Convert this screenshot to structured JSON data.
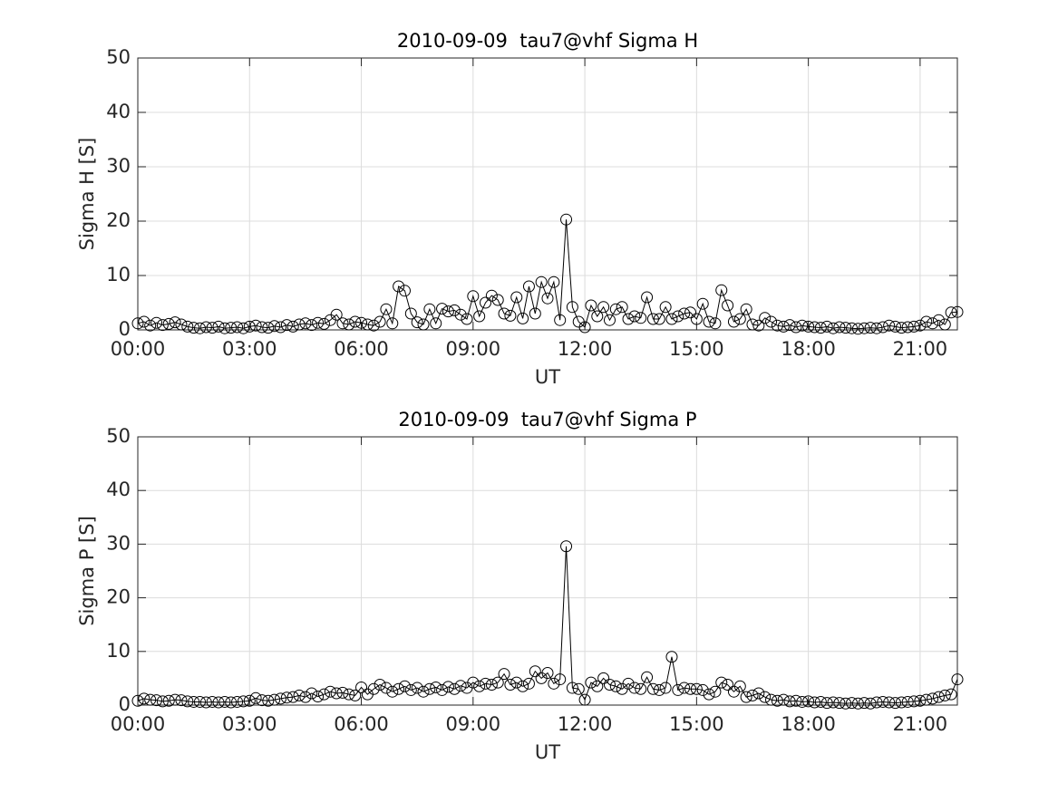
{
  "chart_data": [
    {
      "type": "line",
      "title": "2010-09-09  tau7@vhf Sigma H",
      "xlabel": "UT",
      "ylabel": "Sigma H [S]",
      "color": "#000000",
      "marker": "circle",
      "grid": true,
      "x": [
        0,
        10,
        20,
        30,
        40,
        50,
        60,
        70,
        80,
        90,
        100,
        110,
        120,
        130,
        140,
        150,
        160,
        170,
        180,
        190,
        200,
        210,
        220,
        230,
        240,
        250,
        260,
        270,
        280,
        290,
        300,
        310,
        320,
        330,
        340,
        350,
        360,
        370,
        380,
        390,
        400,
        410,
        420,
        430,
        440,
        450,
        460,
        470,
        480,
        490,
        500,
        510,
        520,
        530,
        540,
        550,
        560,
        570,
        580,
        590,
        600,
        610,
        620,
        630,
        640,
        650,
        660,
        670,
        680,
        690,
        700,
        710,
        720,
        730,
        740,
        750,
        760,
        770,
        780,
        790,
        800,
        810,
        820,
        830,
        840,
        850,
        860,
        870,
        880,
        890,
        900,
        910,
        920,
        930,
        940,
        950,
        960,
        970,
        980,
        990,
        1000,
        1010,
        1020,
        1030,
        1040,
        1050,
        1060,
        1070,
        1080,
        1090,
        1100,
        1110,
        1120,
        1130,
        1140,
        1150,
        1160,
        1170,
        1180,
        1190,
        1200,
        1210,
        1220,
        1230,
        1240,
        1250,
        1260,
        1270,
        1280,
        1290,
        1300,
        1310,
        1320
      ],
      "values": [
        1.2,
        1.5,
        0.8,
        1.3,
        0.9,
        1.1,
        1.4,
        1.0,
        0.6,
        0.4,
        0.3,
        0.5,
        0.4,
        0.6,
        0.3,
        0.4,
        0.5,
        0.3,
        0.6,
        0.8,
        0.5,
        0.4,
        0.7,
        0.5,
        0.9,
        0.6,
        1.0,
        1.2,
        0.9,
        1.3,
        1.1,
        1.8,
        2.8,
        1.2,
        1.0,
        1.5,
        1.3,
        1.0,
        0.8,
        1.5,
        3.8,
        1.2,
        8.0,
        7.2,
        3.0,
        1.4,
        1.0,
        3.8,
        1.2,
        3.9,
        3.4,
        3.6,
        2.8,
        2.0,
        6.2,
        2.5,
        5.0,
        6.3,
        5.5,
        3.0,
        2.6,
        6.0,
        2.1,
        8.0,
        3.0,
        8.8,
        5.8,
        8.8,
        1.8,
        20.3,
        4.2,
        1.5,
        0.5,
        4.5,
        2.5,
        4.2,
        1.8,
        3.8,
        4.2,
        2.0,
        2.5,
        2.2,
        6.0,
        2.0,
        2.0,
        4.2,
        2.0,
        2.5,
        3.0,
        3.2,
        2.0,
        4.8,
        1.5,
        1.2,
        7.3,
        4.5,
        1.5,
        2.0,
        3.8,
        1.0,
        0.8,
        2.2,
        1.5,
        0.8,
        0.6,
        0.9,
        0.5,
        0.8,
        0.6,
        0.5,
        0.4,
        0.6,
        0.3,
        0.5,
        0.4,
        0.3,
        0.2,
        0.3,
        0.4,
        0.3,
        0.5,
        0.8,
        0.6,
        0.4,
        0.5,
        0.6,
        0.8,
        1.5,
        1.2,
        1.8,
        1.0,
        3.2,
        3.3
      ],
      "xlim": [
        0,
        1320
      ],
      "xticks": [
        {
          "value": 0,
          "label": "00:00"
        },
        {
          "value": 180,
          "label": "03:00"
        },
        {
          "value": 360,
          "label": "06:00"
        },
        {
          "value": 540,
          "label": "09:00"
        },
        {
          "value": 720,
          "label": "12:00"
        },
        {
          "value": 900,
          "label": "15:00"
        },
        {
          "value": 1080,
          "label": "18:00"
        },
        {
          "value": 1260,
          "label": "21:00"
        }
      ],
      "ylim": [
        0,
        50
      ],
      "yticks": [
        0,
        10,
        20,
        30,
        40,
        50
      ]
    },
    {
      "type": "line",
      "title": "2010-09-09  tau7@vhf Sigma P",
      "xlabel": "UT",
      "ylabel": "Sigma P [S]",
      "color": "#000000",
      "marker": "circle",
      "grid": true,
      "x": [
        0,
        10,
        20,
        30,
        40,
        50,
        60,
        70,
        80,
        90,
        100,
        110,
        120,
        130,
        140,
        150,
        160,
        170,
        180,
        190,
        200,
        210,
        220,
        230,
        240,
        250,
        260,
        270,
        280,
        290,
        300,
        310,
        320,
        330,
        340,
        350,
        360,
        370,
        380,
        390,
        400,
        410,
        420,
        430,
        440,
        450,
        460,
        470,
        480,
        490,
        500,
        510,
        520,
        530,
        540,
        550,
        560,
        570,
        580,
        590,
        600,
        610,
        620,
        630,
        640,
        650,
        660,
        670,
        680,
        690,
        700,
        710,
        720,
        730,
        740,
        750,
        760,
        770,
        780,
        790,
        800,
        810,
        820,
        830,
        840,
        850,
        860,
        870,
        880,
        890,
        900,
        910,
        920,
        930,
        940,
        950,
        960,
        970,
        980,
        990,
        1000,
        1010,
        1020,
        1030,
        1040,
        1050,
        1060,
        1070,
        1080,
        1090,
        1100,
        1110,
        1120,
        1130,
        1140,
        1150,
        1160,
        1170,
        1180,
        1190,
        1200,
        1210,
        1220,
        1230,
        1240,
        1250,
        1260,
        1270,
        1280,
        1290,
        1300,
        1310,
        1320
      ],
      "values": [
        0.8,
        1.2,
        1.0,
        0.9,
        0.7,
        0.8,
        1.0,
        0.9,
        0.7,
        0.6,
        0.6,
        0.5,
        0.6,
        0.5,
        0.6,
        0.5,
        0.6,
        0.7,
        0.8,
        1.3,
        0.9,
        0.8,
        1.0,
        1.2,
        1.4,
        1.5,
        1.8,
        1.5,
        2.2,
        1.6,
        2.0,
        2.5,
        2.2,
        2.3,
        2.0,
        1.8,
        3.3,
        2.0,
        3.0,
        3.8,
        3.2,
        2.5,
        3.0,
        3.5,
        2.8,
        3.2,
        2.5,
        3.0,
        3.3,
        2.8,
        3.4,
        3.0,
        3.6,
        3.2,
        4.2,
        3.5,
        4.0,
        3.8,
        4.2,
        5.8,
        3.8,
        4.2,
        3.5,
        4.0,
        6.3,
        5.0,
        6.0,
        4.0,
        4.8,
        29.6,
        3.2,
        3.0,
        1.0,
        4.2,
        3.5,
        5.0,
        3.8,
        3.5,
        3.0,
        4.0,
        3.2,
        3.0,
        5.2,
        3.0,
        2.8,
        3.2,
        9.0,
        2.8,
        3.2,
        3.0,
        3.0,
        2.8,
        2.0,
        2.5,
        4.2,
        3.8,
        2.5,
        3.5,
        1.5,
        1.8,
        2.2,
        1.5,
        1.0,
        0.8,
        1.0,
        0.7,
        0.8,
        0.6,
        0.7,
        0.5,
        0.6,
        0.4,
        0.5,
        0.4,
        0.3,
        0.4,
        0.3,
        0.4,
        0.3,
        0.5,
        0.6,
        0.5,
        0.4,
        0.5,
        0.6,
        0.7,
        0.8,
        1.0,
        1.2,
        1.5,
        1.8,
        2.0,
        4.8
      ],
      "xlim": [
        0,
        1320
      ],
      "xticks": [
        {
          "value": 0,
          "label": "00:00"
        },
        {
          "value": 180,
          "label": "03:00"
        },
        {
          "value": 360,
          "label": "06:00"
        },
        {
          "value": 540,
          "label": "09:00"
        },
        {
          "value": 720,
          "label": "12:00"
        },
        {
          "value": 900,
          "label": "15:00"
        },
        {
          "value": 1080,
          "label": "18:00"
        },
        {
          "value": 1260,
          "label": "21:00"
        }
      ],
      "ylim": [
        0,
        50
      ],
      "yticks": [
        0,
        10,
        20,
        30,
        40,
        50
      ]
    }
  ]
}
